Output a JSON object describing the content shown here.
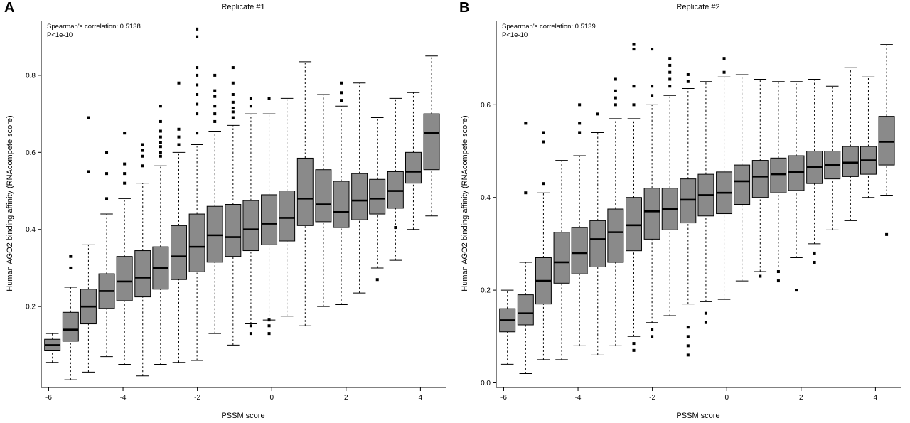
{
  "figure": {
    "background": "#ffffff"
  },
  "style": {
    "box_fill": "#8a8a8a",
    "stroke": "#000000",
    "median_width": 2.6,
    "outlier_size": 4
  },
  "chart_data": [
    {
      "type": "boxplot",
      "panel_letter": "A",
      "title": "Replicate #1",
      "annotation": [
        "Spearman's correlation: 0.5138",
        "P<1e-10"
      ],
      "xlabel": "PSSM score",
      "ylabel": "Human AGO2 binding affinity (RNAcompete score)",
      "xlim": [
        -6.2,
        4.7
      ],
      "ylim": [
        -0.01,
        0.94
      ],
      "xticks": [
        -6,
        -4,
        -2,
        0,
        2,
        4
      ],
      "yticks": [
        0.2,
        0.4,
        0.6,
        0.8
      ],
      "box_width": 0.42,
      "boxes": [
        {
          "x": -5.9,
          "low": 0.055,
          "q1": 0.085,
          "med": 0.1,
          "q3": 0.115,
          "high": 0.13,
          "outliers": []
        },
        {
          "x": -5.41,
          "low": 0.01,
          "q1": 0.11,
          "med": 0.14,
          "q3": 0.185,
          "high": 0.25,
          "outliers": [
            0.3,
            0.33
          ]
        },
        {
          "x": -4.93,
          "low": 0.03,
          "q1": 0.155,
          "med": 0.2,
          "q3": 0.245,
          "high": 0.36,
          "outliers": [
            0.55,
            0.69
          ]
        },
        {
          "x": -4.44,
          "low": 0.07,
          "q1": 0.195,
          "med": 0.24,
          "q3": 0.285,
          "high": 0.44,
          "outliers": [
            0.48,
            0.545,
            0.6
          ]
        },
        {
          "x": -3.96,
          "low": 0.05,
          "q1": 0.215,
          "med": 0.265,
          "q3": 0.33,
          "high": 0.48,
          "outliers": [
            0.52,
            0.545,
            0.57,
            0.65
          ]
        },
        {
          "x": -3.47,
          "low": 0.02,
          "q1": 0.225,
          "med": 0.275,
          "q3": 0.345,
          "high": 0.52,
          "outliers": [
            0.565,
            0.59,
            0.605,
            0.62
          ]
        },
        {
          "x": -2.99,
          "low": 0.05,
          "q1": 0.245,
          "med": 0.3,
          "q3": 0.355,
          "high": 0.565,
          "outliers": [
            0.59,
            0.6,
            0.615,
            0.625,
            0.64,
            0.655,
            0.68,
            0.72
          ]
        },
        {
          "x": -2.5,
          "low": 0.055,
          "q1": 0.27,
          "med": 0.33,
          "q3": 0.41,
          "high": 0.6,
          "outliers": [
            0.62,
            0.64,
            0.66,
            0.78
          ]
        },
        {
          "x": -2.01,
          "low": 0.06,
          "q1": 0.29,
          "med": 0.355,
          "q3": 0.44,
          "high": 0.62,
          "outliers": [
            0.65,
            0.7,
            0.725,
            0.75,
            0.775,
            0.8,
            0.82,
            0.9,
            0.92
          ]
        },
        {
          "x": -1.53,
          "low": 0.13,
          "q1": 0.315,
          "med": 0.385,
          "q3": 0.46,
          "high": 0.655,
          "outliers": [
            0.68,
            0.7,
            0.72,
            0.745,
            0.76,
            0.8
          ]
        },
        {
          "x": -1.04,
          "low": 0.1,
          "q1": 0.33,
          "med": 0.38,
          "q3": 0.465,
          "high": 0.67,
          "outliers": [
            0.69,
            0.705,
            0.715,
            0.73,
            0.75,
            0.78,
            0.82
          ]
        },
        {
          "x": -0.56,
          "low": 0.155,
          "q1": 0.345,
          "med": 0.4,
          "q3": 0.475,
          "high": 0.7,
          "outliers": [
            0.13,
            0.15,
            0.72,
            0.74
          ]
        },
        {
          "x": -0.07,
          "low": 0.165,
          "q1": 0.36,
          "med": 0.415,
          "q3": 0.49,
          "high": 0.7,
          "outliers": [
            0.13,
            0.15,
            0.165,
            0.74
          ]
        },
        {
          "x": 0.41,
          "low": 0.175,
          "q1": 0.37,
          "med": 0.43,
          "q3": 0.5,
          "high": 0.74,
          "outliers": []
        },
        {
          "x": 0.9,
          "low": 0.15,
          "q1": 0.41,
          "med": 0.48,
          "q3": 0.585,
          "high": 0.835,
          "outliers": []
        },
        {
          "x": 1.39,
          "low": 0.2,
          "q1": 0.42,
          "med": 0.465,
          "q3": 0.555,
          "high": 0.75,
          "outliers": []
        },
        {
          "x": 1.87,
          "low": 0.205,
          "q1": 0.405,
          "med": 0.445,
          "q3": 0.525,
          "high": 0.72,
          "outliers": [
            0.735,
            0.755,
            0.78
          ]
        },
        {
          "x": 2.36,
          "low": 0.235,
          "q1": 0.425,
          "med": 0.475,
          "q3": 0.545,
          "high": 0.78,
          "outliers": []
        },
        {
          "x": 2.84,
          "low": 0.3,
          "q1": 0.44,
          "med": 0.48,
          "q3": 0.53,
          "high": 0.69,
          "outliers": [
            0.27
          ]
        },
        {
          "x": 3.33,
          "low": 0.32,
          "q1": 0.455,
          "med": 0.5,
          "q3": 0.55,
          "high": 0.74,
          "outliers": [
            0.405
          ]
        },
        {
          "x": 3.81,
          "low": 0.4,
          "q1": 0.52,
          "med": 0.55,
          "q3": 0.6,
          "high": 0.755,
          "outliers": []
        },
        {
          "x": 4.3,
          "low": 0.435,
          "q1": 0.555,
          "med": 0.65,
          "q3": 0.7,
          "high": 0.85,
          "outliers": []
        }
      ]
    },
    {
      "type": "boxplot",
      "panel_letter": "B",
      "title": "Replicate #2",
      "annotation": [
        "Spearman's correlation: 0.5139",
        "P<1e-10"
      ],
      "xlabel": "PSSM score",
      "ylabel": "Human AGO2 binding affinity (RNAcompete score)",
      "xlim": [
        -6.2,
        4.7
      ],
      "ylim": [
        -0.01,
        0.78
      ],
      "xticks": [
        -6,
        -4,
        -2,
        0,
        2,
        4
      ],
      "yticks": [
        0.0,
        0.2,
        0.4,
        0.6
      ],
      "box_width": 0.42,
      "boxes": [
        {
          "x": -5.9,
          "low": 0.04,
          "q1": 0.11,
          "med": 0.135,
          "q3": 0.16,
          "high": 0.2,
          "outliers": []
        },
        {
          "x": -5.41,
          "low": 0.02,
          "q1": 0.125,
          "med": 0.15,
          "q3": 0.19,
          "high": 0.26,
          "outliers": [
            0.41,
            0.56
          ]
        },
        {
          "x": -4.93,
          "low": 0.05,
          "q1": 0.17,
          "med": 0.22,
          "q3": 0.27,
          "high": 0.41,
          "outliers": [
            0.43,
            0.52,
            0.54
          ]
        },
        {
          "x": -4.44,
          "low": 0.05,
          "q1": 0.215,
          "med": 0.26,
          "q3": 0.325,
          "high": 0.48,
          "outliers": []
        },
        {
          "x": -3.96,
          "low": 0.08,
          "q1": 0.235,
          "med": 0.28,
          "q3": 0.335,
          "high": 0.49,
          "outliers": [
            0.54,
            0.56,
            0.6
          ]
        },
        {
          "x": -3.47,
          "low": 0.06,
          "q1": 0.25,
          "med": 0.31,
          "q3": 0.35,
          "high": 0.54,
          "outliers": [
            0.58
          ]
        },
        {
          "x": -2.99,
          "low": 0.08,
          "q1": 0.26,
          "med": 0.325,
          "q3": 0.375,
          "high": 0.57,
          "outliers": [
            0.6,
            0.615,
            0.63,
            0.655
          ]
        },
        {
          "x": -2.5,
          "low": 0.1,
          "q1": 0.285,
          "med": 0.34,
          "q3": 0.4,
          "high": 0.57,
          "outliers": [
            0.07,
            0.085,
            0.6,
            0.64,
            0.72,
            0.73
          ]
        },
        {
          "x": -2.01,
          "low": 0.13,
          "q1": 0.31,
          "med": 0.37,
          "q3": 0.42,
          "high": 0.6,
          "outliers": [
            0.1,
            0.115,
            0.62,
            0.64,
            0.72
          ]
        },
        {
          "x": -1.53,
          "low": 0.145,
          "q1": 0.33,
          "med": 0.375,
          "q3": 0.42,
          "high": 0.62,
          "outliers": [
            0.64,
            0.655,
            0.67,
            0.685,
            0.7
          ]
        },
        {
          "x": -1.04,
          "low": 0.17,
          "q1": 0.345,
          "med": 0.395,
          "q3": 0.44,
          "high": 0.635,
          "outliers": [
            0.06,
            0.08,
            0.1,
            0.12,
            0.65,
            0.665
          ]
        },
        {
          "x": -0.56,
          "low": 0.175,
          "q1": 0.36,
          "med": 0.405,
          "q3": 0.45,
          "high": 0.65,
          "outliers": [
            0.13,
            0.15
          ]
        },
        {
          "x": -0.07,
          "low": 0.18,
          "q1": 0.365,
          "med": 0.41,
          "q3": 0.455,
          "high": 0.66,
          "outliers": [
            0.67,
            0.7
          ]
        },
        {
          "x": 0.41,
          "low": 0.22,
          "q1": 0.385,
          "med": 0.435,
          "q3": 0.47,
          "high": 0.665,
          "outliers": []
        },
        {
          "x": 0.9,
          "low": 0.24,
          "q1": 0.4,
          "med": 0.445,
          "q3": 0.48,
          "high": 0.655,
          "outliers": [
            0.23
          ]
        },
        {
          "x": 1.39,
          "low": 0.25,
          "q1": 0.41,
          "med": 0.45,
          "q3": 0.485,
          "high": 0.65,
          "outliers": [
            0.22,
            0.24
          ]
        },
        {
          "x": 1.87,
          "low": 0.27,
          "q1": 0.415,
          "med": 0.455,
          "q3": 0.49,
          "high": 0.65,
          "outliers": [
            0.2
          ]
        },
        {
          "x": 2.36,
          "low": 0.3,
          "q1": 0.43,
          "med": 0.465,
          "q3": 0.5,
          "high": 0.655,
          "outliers": [
            0.26,
            0.28
          ]
        },
        {
          "x": 2.84,
          "low": 0.33,
          "q1": 0.44,
          "med": 0.47,
          "q3": 0.5,
          "high": 0.64,
          "outliers": []
        },
        {
          "x": 3.33,
          "low": 0.35,
          "q1": 0.445,
          "med": 0.475,
          "q3": 0.51,
          "high": 0.68,
          "outliers": []
        },
        {
          "x": 3.81,
          "low": 0.4,
          "q1": 0.45,
          "med": 0.48,
          "q3": 0.51,
          "high": 0.66,
          "outliers": []
        },
        {
          "x": 4.3,
          "low": 0.405,
          "q1": 0.47,
          "med": 0.52,
          "q3": 0.575,
          "high": 0.73,
          "outliers": [
            0.32
          ]
        }
      ]
    }
  ]
}
